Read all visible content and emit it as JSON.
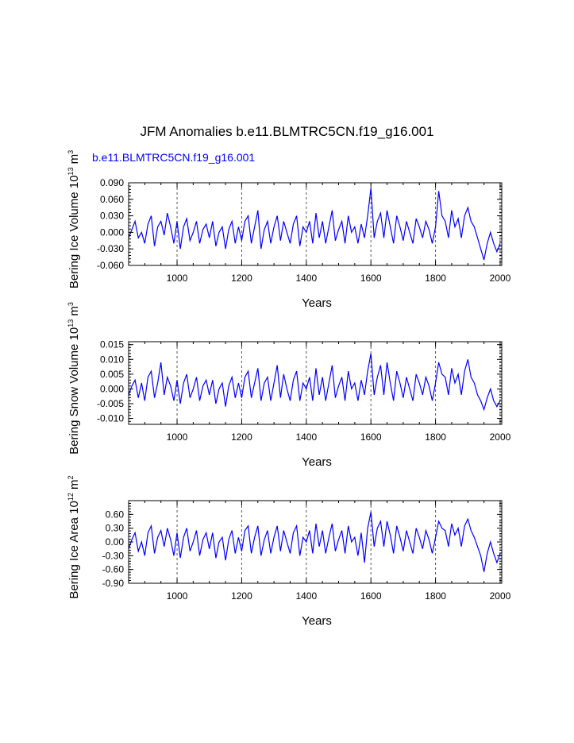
{
  "title": "JFM Anomalies b.e11.BLMTRC5CN.f19_g16.001",
  "series_label": "b.e11.BLMTRC5CN.f19_g16.001",
  "colors": {
    "line": "#0000ff",
    "axis": "#000000",
    "grid": "#555555"
  },
  "chart_data": [
    {
      "type": "line",
      "name": "ice-volume",
      "ylabel_main": "Bering Ice Volume 10",
      "ylabel_exp": "13",
      "ylabel_unit": " m",
      "ylabel_unit_exp": "3",
      "xlabel": "Years",
      "xlim": [
        850,
        2005
      ],
      "ylim": [
        -0.06,
        0.09
      ],
      "xticks": [
        1000,
        1200,
        1400,
        1600,
        1800,
        2000
      ],
      "xtick_labels": [
        "1000",
        "1200",
        "1400",
        "1600",
        "1800",
        "2000"
      ],
      "yticks": [
        -0.06,
        -0.03,
        0.0,
        0.03,
        0.06,
        0.09
      ],
      "ytick_labels": [
        "-0.060",
        "-0.030",
        "0.000",
        "0.030",
        "0.060",
        "0.090"
      ],
      "series": [
        {
          "name": "b.e11.BLMTRC5CN.f19_g16.001",
          "x": [
            850,
            860,
            870,
            880,
            890,
            900,
            910,
            920,
            930,
            940,
            950,
            960,
            970,
            980,
            990,
            1000,
            1010,
            1020,
            1030,
            1040,
            1050,
            1060,
            1070,
            1080,
            1090,
            1100,
            1110,
            1120,
            1130,
            1140,
            1150,
            1160,
            1170,
            1180,
            1190,
            1200,
            1210,
            1220,
            1230,
            1240,
            1250,
            1260,
            1270,
            1280,
            1290,
            1300,
            1310,
            1320,
            1330,
            1340,
            1350,
            1360,
            1370,
            1380,
            1390,
            1400,
            1410,
            1420,
            1430,
            1440,
            1450,
            1460,
            1470,
            1480,
            1490,
            1500,
            1510,
            1520,
            1530,
            1540,
            1550,
            1560,
            1570,
            1580,
            1590,
            1600,
            1610,
            1620,
            1630,
            1640,
            1650,
            1660,
            1670,
            1680,
            1690,
            1700,
            1710,
            1720,
            1730,
            1740,
            1750,
            1760,
            1770,
            1780,
            1790,
            1800,
            1810,
            1820,
            1830,
            1840,
            1850,
            1860,
            1870,
            1880,
            1890,
            1900,
            1910,
            1920,
            1930,
            1940,
            1950,
            1960,
            1970,
            1980,
            1990,
            2000
          ],
          "values": [
            -0.01,
            0.005,
            0.02,
            -0.01,
            0.0,
            -0.02,
            0.015,
            0.03,
            -0.025,
            0.01,
            0.02,
            -0.005,
            0.035,
            0.01,
            -0.02,
            0.02,
            -0.03,
            0.01,
            0.025,
            -0.015,
            0.0,
            0.02,
            -0.02,
            0.005,
            0.015,
            -0.01,
            0.02,
            -0.025,
            0.0,
            0.01,
            -0.03,
            0.005,
            0.02,
            -0.02,
            0.01,
            -0.015,
            0.02,
            0.03,
            -0.02,
            0.01,
            0.04,
            -0.03,
            0.005,
            0.02,
            -0.02,
            0.01,
            0.03,
            -0.015,
            0.02,
            0.0,
            -0.02,
            0.015,
            0.03,
            -0.025,
            0.01,
            0.0,
            0.02,
            -0.02,
            0.035,
            -0.01,
            0.02,
            -0.02,
            0.01,
            0.04,
            -0.015,
            0.005,
            0.02,
            -0.02,
            0.03,
            0.0,
            0.01,
            -0.02,
            0.015,
            -0.01,
            0.03,
            0.08,
            -0.01,
            0.02,
            0.035,
            -0.01,
            0.04,
            0.01,
            -0.02,
            0.03,
            0.01,
            -0.015,
            0.02,
            0.0,
            -0.02,
            0.025,
            0.01,
            -0.01,
            0.02,
            0.005,
            -0.02,
            0.01,
            0.075,
            0.03,
            0.02,
            -0.01,
            0.04,
            0.01,
            0.025,
            -0.01,
            0.03,
            0.045,
            0.02,
            0.01,
            -0.01,
            -0.03,
            -0.05,
            -0.02,
            0.0,
            -0.02,
            -0.035,
            -0.02
          ]
        }
      ]
    },
    {
      "type": "line",
      "name": "snow-volume",
      "ylabel_main": "Bering Snow Volume 10",
      "ylabel_exp": "13",
      "ylabel_unit": " m",
      "ylabel_unit_exp": "3",
      "xlabel": "Years",
      "xlim": [
        850,
        2005
      ],
      "ylim": [
        -0.012,
        0.016
      ],
      "xticks": [
        1000,
        1200,
        1400,
        1600,
        1800,
        2000
      ],
      "xtick_labels": [
        "1000",
        "1200",
        "1400",
        "1600",
        "1800",
        "2000"
      ],
      "yticks": [
        -0.01,
        -0.005,
        0.0,
        0.005,
        0.01,
        0.015
      ],
      "ytick_labels": [
        "-0.010",
        "-0.005",
        "0.000",
        "0.005",
        "0.010",
        "0.015"
      ],
      "series": [
        {
          "name": "b.e11.BLMTRC5CN.f19_g16.001",
          "x": [
            850,
            860,
            870,
            880,
            890,
            900,
            910,
            920,
            930,
            940,
            950,
            960,
            970,
            980,
            990,
            1000,
            1010,
            1020,
            1030,
            1040,
            1050,
            1060,
            1070,
            1080,
            1090,
            1100,
            1110,
            1120,
            1130,
            1140,
            1150,
            1160,
            1170,
            1180,
            1190,
            1200,
            1210,
            1220,
            1230,
            1240,
            1250,
            1260,
            1270,
            1280,
            1290,
            1300,
            1310,
            1320,
            1330,
            1340,
            1350,
            1360,
            1370,
            1380,
            1390,
            1400,
            1410,
            1420,
            1430,
            1440,
            1450,
            1460,
            1470,
            1480,
            1490,
            1500,
            1510,
            1520,
            1530,
            1540,
            1550,
            1560,
            1570,
            1580,
            1590,
            1600,
            1610,
            1620,
            1630,
            1640,
            1650,
            1660,
            1670,
            1680,
            1690,
            1700,
            1710,
            1720,
            1730,
            1740,
            1750,
            1760,
            1770,
            1780,
            1790,
            1800,
            1810,
            1820,
            1830,
            1840,
            1850,
            1860,
            1870,
            1880,
            1890,
            1900,
            1910,
            1920,
            1930,
            1940,
            1950,
            1960,
            1970,
            1980,
            1990,
            2000
          ],
          "values": [
            -0.002,
            0.001,
            0.003,
            -0.003,
            0.002,
            -0.004,
            0.004,
            0.006,
            -0.003,
            0.002,
            0.009,
            -0.002,
            0.004,
            0.001,
            -0.004,
            0.003,
            -0.005,
            0.002,
            0.005,
            -0.003,
            0.0,
            0.004,
            -0.004,
            0.001,
            0.003,
            -0.002,
            0.003,
            -0.005,
            0.0,
            0.002,
            -0.006,
            0.001,
            0.004,
            -0.003,
            0.002,
            -0.003,
            0.004,
            0.006,
            -0.003,
            0.002,
            0.007,
            -0.004,
            0.002,
            0.004,
            -0.004,
            0.002,
            0.008,
            -0.003,
            0.005,
            0.0,
            -0.004,
            0.003,
            0.006,
            -0.004,
            0.002,
            0.0,
            0.004,
            -0.004,
            0.007,
            -0.002,
            0.004,
            -0.004,
            0.002,
            0.008,
            -0.003,
            0.001,
            0.004,
            -0.004,
            0.006,
            0.0,
            0.002,
            -0.004,
            0.003,
            -0.002,
            0.006,
            0.012,
            -0.002,
            0.004,
            0.008,
            -0.002,
            0.009,
            0.002,
            -0.004,
            0.006,
            0.002,
            -0.003,
            0.004,
            0.0,
            -0.004,
            0.005,
            0.002,
            -0.002,
            0.004,
            0.001,
            -0.004,
            0.002,
            0.009,
            0.005,
            0.004,
            -0.002,
            0.007,
            0.002,
            0.005,
            -0.002,
            0.006,
            0.01,
            0.004,
            0.002,
            -0.002,
            -0.004,
            -0.007,
            -0.003,
            0.0,
            -0.004,
            -0.006,
            -0.004
          ]
        }
      ]
    },
    {
      "type": "line",
      "name": "ice-area",
      "ylabel_main": "Bering Ice Area 10",
      "ylabel_exp": "12",
      "ylabel_unit": " m",
      "ylabel_unit_exp": "2",
      "xlabel": "Years",
      "xlim": [
        850,
        2005
      ],
      "ylim": [
        -0.9,
        0.9
      ],
      "xticks": [
        1000,
        1200,
        1400,
        1600,
        1800,
        2000
      ],
      "xtick_labels": [
        "1000",
        "1200",
        "1400",
        "1600",
        "1800",
        "2000"
      ],
      "yticks": [
        -0.9,
        -0.6,
        -0.3,
        0.0,
        0.3,
        0.6
      ],
      "ytick_labels": [
        "-0.90",
        "-0.60",
        "-0.30",
        "0.00",
        "0.30",
        "0.60"
      ],
      "series": [
        {
          "name": "b.e11.BLMTRC5CN.f19_g16.001",
          "x": [
            850,
            860,
            870,
            880,
            890,
            900,
            910,
            920,
            930,
            940,
            950,
            960,
            970,
            980,
            990,
            1000,
            1010,
            1020,
            1030,
            1040,
            1050,
            1060,
            1070,
            1080,
            1090,
            1100,
            1110,
            1120,
            1130,
            1140,
            1150,
            1160,
            1170,
            1180,
            1190,
            1200,
            1210,
            1220,
            1230,
            1240,
            1250,
            1260,
            1270,
            1280,
            1290,
            1300,
            1310,
            1320,
            1330,
            1340,
            1350,
            1360,
            1370,
            1380,
            1390,
            1400,
            1410,
            1420,
            1430,
            1440,
            1450,
            1460,
            1470,
            1480,
            1490,
            1500,
            1510,
            1520,
            1530,
            1540,
            1550,
            1560,
            1570,
            1580,
            1590,
            1600,
            1610,
            1620,
            1630,
            1640,
            1650,
            1660,
            1670,
            1680,
            1690,
            1700,
            1710,
            1720,
            1730,
            1740,
            1750,
            1760,
            1770,
            1780,
            1790,
            1800,
            1810,
            1820,
            1830,
            1840,
            1850,
            1860,
            1870,
            1880,
            1890,
            1900,
            1910,
            1920,
            1930,
            1940,
            1950,
            1960,
            1970,
            1980,
            1990,
            2000
          ],
          "values": [
            -0.15,
            0.05,
            0.2,
            -0.2,
            0.0,
            -0.3,
            0.2,
            0.35,
            -0.25,
            0.1,
            0.25,
            -0.1,
            0.3,
            0.05,
            -0.3,
            0.2,
            -0.35,
            0.1,
            0.3,
            -0.2,
            0.0,
            0.25,
            -0.3,
            0.05,
            0.2,
            -0.15,
            0.2,
            -0.35,
            0.0,
            0.1,
            -0.4,
            0.05,
            0.25,
            -0.25,
            0.1,
            -0.2,
            0.25,
            0.35,
            -0.25,
            0.1,
            0.35,
            -0.3,
            0.05,
            0.25,
            -0.25,
            0.1,
            0.35,
            -0.2,
            0.25,
            0.0,
            -0.25,
            0.2,
            0.35,
            -0.3,
            0.1,
            0.0,
            0.25,
            -0.25,
            0.4,
            -0.1,
            0.25,
            -0.25,
            0.1,
            0.4,
            -0.2,
            0.05,
            0.25,
            -0.25,
            0.35,
            0.0,
            0.1,
            -0.3,
            0.2,
            -0.45,
            0.3,
            0.65,
            -0.1,
            0.3,
            0.45,
            -0.1,
            0.45,
            0.15,
            -0.25,
            0.35,
            0.1,
            -0.2,
            0.25,
            0.0,
            -0.25,
            0.3,
            0.1,
            -0.15,
            0.25,
            0.05,
            -0.25,
            0.1,
            0.45,
            0.3,
            0.25,
            -0.1,
            0.4,
            0.15,
            0.3,
            -0.1,
            0.35,
            0.5,
            0.25,
            0.1,
            -0.1,
            -0.3,
            -0.65,
            -0.25,
            0.0,
            -0.25,
            -0.45,
            -0.25
          ]
        }
      ]
    }
  ]
}
